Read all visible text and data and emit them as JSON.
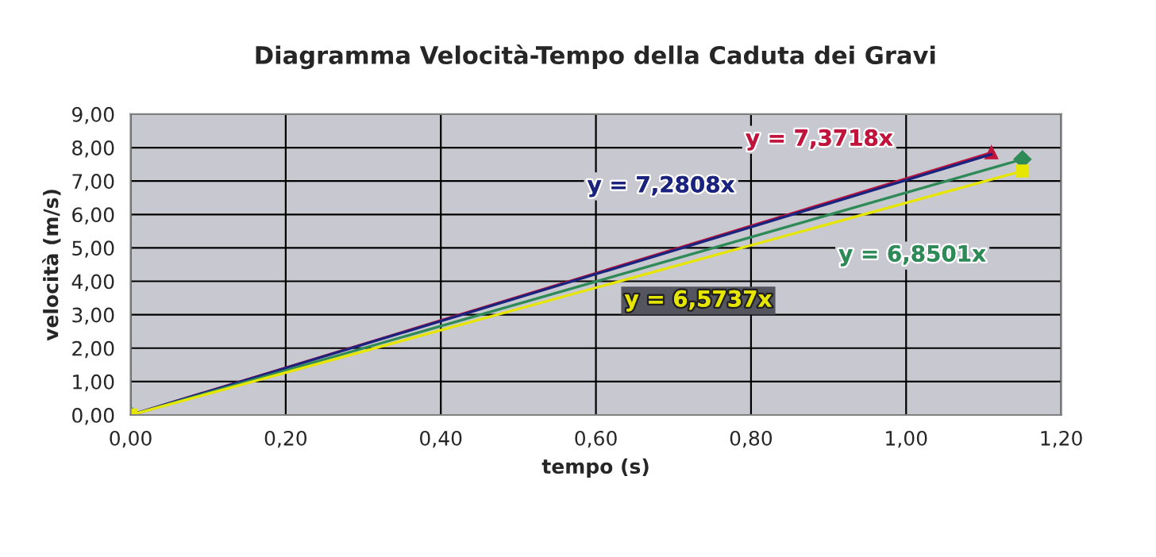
{
  "chart_data": {
    "type": "line",
    "title": "Diagramma Velocità-Tempo della Caduta dei Gravi",
    "xlabel": "tempo (s)",
    "ylabel": "velocità (m/s)",
    "series": [
      {
        "color": "#c0143c",
        "x": [
          0,
          1.11
        ],
        "values": [
          0,
          7.85
        ],
        "marker": "triangle"
      },
      {
        "color": "#1a237e",
        "x": [
          0,
          1.11
        ],
        "values": [
          0,
          7.8
        ],
        "marker": "none"
      },
      {
        "color": "#2e8b57",
        "x": [
          0,
          1.15
        ],
        "values": [
          0,
          7.65
        ],
        "marker": "diamond"
      },
      {
        "color": "#e6e600",
        "x": [
          0,
          1.15
        ],
        "values": [
          0,
          7.3
        ],
        "marker": "square"
      }
    ],
    "annotations": [
      "y = 7,3718x",
      "y = 7,2808x",
      "y = 6,8501x",
      "y = 6,5737x"
    ],
    "xlim": [
      0,
      1.2
    ],
    "ylim": [
      0,
      9
    ],
    "xticks": [
      {
        "value": 0,
        "label": "0,00"
      },
      {
        "value": 0.2,
        "label": "0,20"
      },
      {
        "value": 0.4,
        "label": "0,40"
      },
      {
        "value": 0.6,
        "label": "0,60"
      },
      {
        "value": 0.8,
        "label": "0,80"
      },
      {
        "value": 1.0,
        "label": "1,00"
      },
      {
        "value": 1.2,
        "label": "1,20"
      }
    ],
    "yticks": [
      {
        "value": 0,
        "label": "0,00"
      },
      {
        "value": 1,
        "label": "1,00"
      },
      {
        "value": 2,
        "label": "2,00"
      },
      {
        "value": 3,
        "label": "3,00"
      },
      {
        "value": 4,
        "label": "4,00"
      },
      {
        "value": 5,
        "label": "5,00"
      },
      {
        "value": 6,
        "label": "6,00"
      },
      {
        "value": 7,
        "label": "7,00"
      },
      {
        "value": 8,
        "label": "8,00"
      },
      {
        "value": 9,
        "label": "9,00"
      }
    ],
    "grid": true
  }
}
